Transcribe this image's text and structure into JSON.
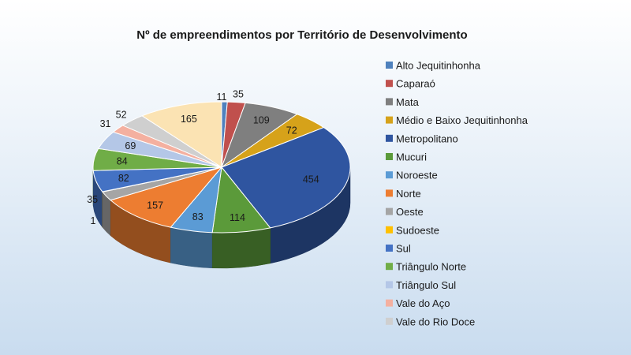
{
  "chart_data": {
    "type": "pie",
    "style": "3d",
    "title": "Nº de empreendimentos por Território de Desenvolvimento",
    "legend_position": "right",
    "series": [
      {
        "name": "Alto Jequitinhonha",
        "value": 11,
        "color": "#4f81bd"
      },
      {
        "name": "Caparaó",
        "value": 35,
        "color": "#c0504d"
      },
      {
        "name": "Mata",
        "value": 109,
        "color": "#7f7f7f"
      },
      {
        "name": "Médio e Baixo Jequitinhonha",
        "value": 72,
        "color": "#d6a21a"
      },
      {
        "name": "Metropolitano",
        "value": 454,
        "color": "#2f55a0"
      },
      {
        "name": "Mucuri",
        "value": 114,
        "color": "#5b9a3a"
      },
      {
        "name": "Noroeste",
        "value": 83,
        "color": "#5b9bd5"
      },
      {
        "name": "Norte",
        "value": 157,
        "color": "#ed7d31"
      },
      {
        "name": "Oeste",
        "value": 35,
        "color": "#a5a5a5"
      },
      {
        "name": "Sudoeste",
        "value": 1,
        "color": "#ffc000"
      },
      {
        "name": "Sul",
        "value": 82,
        "color": "#4472c4"
      },
      {
        "name": "Triângulo Norte",
        "value": 84,
        "color": "#70ad47"
      },
      {
        "name": "Triângulo Sul",
        "value": 69,
        "color": "#b4c7e7"
      },
      {
        "name": "Vale do Aço",
        "value": 31,
        "color": "#f4b0a0"
      },
      {
        "name": "Vale do Rio Doce",
        "value": 52,
        "color": "#cfcfcf"
      },
      {
        "name": "",
        "value": 165,
        "color": "#fbe3b3"
      }
    ]
  }
}
